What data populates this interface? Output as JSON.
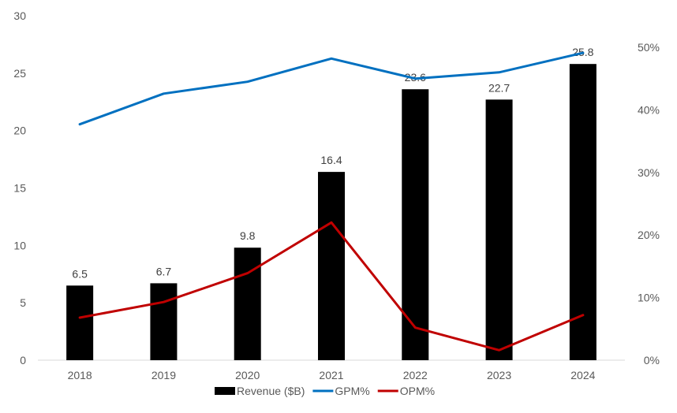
{
  "chart_data": {
    "type": "bar",
    "categories": [
      "2018",
      "2019",
      "2020",
      "2021",
      "2022",
      "2023",
      "2024"
    ],
    "series": [
      {
        "name": "Revenue ($B)",
        "type": "bar",
        "axis": "left",
        "color": "#000000",
        "values": [
          6.5,
          6.7,
          9.8,
          16.4,
          23.6,
          22.7,
          25.8
        ]
      },
      {
        "name": "GPM%",
        "type": "line",
        "axis": "right",
        "color": "#0070C0",
        "values": [
          37.7,
          42.6,
          44.5,
          48.2,
          45.0,
          46.0,
          49.1
        ]
      },
      {
        "name": "OPM%",
        "type": "line",
        "axis": "right",
        "color": "#C00000",
        "values": [
          6.8,
          9.3,
          13.9,
          22.0,
          5.2,
          1.6,
          7.2
        ]
      }
    ],
    "data_labels": [
      "6.5",
      "6.7",
      "9.8",
      "16.4",
      "23.6",
      "22.7",
      "25.8"
    ],
    "left_axis": {
      "ylim": [
        0,
        30
      ],
      "ticks": [
        "0",
        "5",
        "10",
        "15",
        "20",
        "25",
        "30"
      ]
    },
    "right_axis": {
      "ylim": [
        0,
        50
      ],
      "ticks": [
        "0%",
        "10%",
        "20%",
        "30%",
        "40%",
        "50%"
      ]
    },
    "grid": false,
    "legend_position": "bottom"
  }
}
